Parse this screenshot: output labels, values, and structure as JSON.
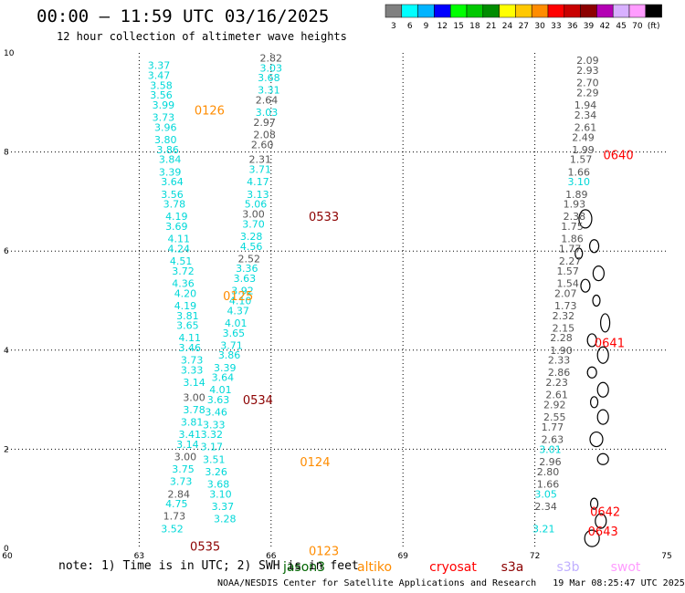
{
  "header": {
    "title": "00:00 – 11:59 UTC 03/16/2025",
    "subtitle": "12 hour collection of altimeter wave heights"
  },
  "colorbar": {
    "ticks": [
      "3",
      "6",
      "9",
      "12",
      "15",
      "18",
      "21",
      "24",
      "27",
      "30",
      "33",
      "36",
      "39",
      "42",
      "45",
      "70",
      "(ft)"
    ],
    "colors": [
      "#808080",
      "#00ffff",
      "#00b4ff",
      "#0000ff",
      "#00ff00",
      "#00c800",
      "#008c00",
      "#ffff00",
      "#ffc800",
      "#ff8c00",
      "#ff0000",
      "#c80000",
      "#8c0000",
      "#b400b4",
      "#d8b0ff",
      "#ff9cff",
      "#000000"
    ]
  },
  "axes": {
    "x_ticks": [
      "60",
      "63",
      "66",
      "69",
      "72",
      "75"
    ],
    "y_ticks": [
      "0",
      "2",
      "4",
      "6",
      "8",
      "10"
    ],
    "xlim": [
      60,
      75
    ],
    "ylim": [
      0,
      10
    ]
  },
  "map_data": {
    "colors": {
      "gray": "#555555",
      "cyan": "#00d8d8",
      "orange": "#ff8c00",
      "darkred": "#8c0000",
      "red": "#ff0000"
    },
    "tracks": [
      {
        "color": "cyan",
        "points": [
          [
            63.45,
            9.75,
            "3.37"
          ],
          [
            63.45,
            9.55,
            "3.47"
          ],
          [
            63.5,
            9.35,
            "3.58"
          ],
          [
            63.5,
            9.15,
            "3.56"
          ],
          [
            63.55,
            8.95,
            "3.99"
          ],
          [
            63.55,
            8.7,
            "3.73"
          ],
          [
            63.6,
            8.5,
            "3.96"
          ],
          [
            63.6,
            8.25,
            "3.80"
          ],
          [
            63.65,
            8.05,
            "3.86"
          ],
          [
            63.7,
            7.85,
            "3.84"
          ],
          [
            63.7,
            7.6,
            "3.39"
          ],
          [
            63.75,
            7.4,
            "3.64"
          ],
          [
            63.75,
            7.15,
            "3.56"
          ],
          [
            63.8,
            6.95,
            "3.78"
          ],
          [
            63.85,
            6.7,
            "4.19"
          ],
          [
            63.85,
            6.5,
            "3.69"
          ],
          [
            63.9,
            6.25,
            "4.11"
          ],
          [
            63.9,
            6.05,
            "4.24"
          ],
          [
            63.95,
            5.8,
            "4.51"
          ],
          [
            64.0,
            5.6,
            "3.72"
          ],
          [
            64.0,
            5.35,
            "4.36"
          ],
          [
            64.05,
            5.15,
            "4.20"
          ],
          [
            64.05,
            4.9,
            "4.19"
          ],
          [
            64.1,
            4.7,
            "3.81"
          ],
          [
            64.1,
            4.5,
            "3.65"
          ],
          [
            64.15,
            4.25,
            "4.11"
          ],
          [
            64.15,
            4.05,
            "3.46"
          ],
          [
            64.2,
            3.8,
            "3.73"
          ],
          [
            64.2,
            3.6,
            "3.33"
          ],
          [
            64.25,
            3.35,
            "3.14"
          ]
        ]
      },
      {
        "color": "gray",
        "points": [
          [
            64.25,
            3.05,
            "3.00"
          ]
        ]
      },
      {
        "color": "cyan",
        "points": [
          [
            64.25,
            2.8,
            "3.78"
          ],
          [
            64.2,
            2.55,
            "3.81"
          ],
          [
            64.15,
            2.3,
            "3.41"
          ],
          [
            64.1,
            2.1,
            "3.14"
          ]
        ]
      },
      {
        "color": "gray",
        "points": [
          [
            64.05,
            1.85,
            "3.00"
          ]
        ]
      },
      {
        "color": "cyan",
        "points": [
          [
            64.0,
            1.6,
            "3.75"
          ],
          [
            63.95,
            1.35,
            "3.73"
          ]
        ]
      },
      {
        "color": "gray",
        "points": [
          [
            63.9,
            1.1,
            "2.84"
          ]
        ]
      },
      {
        "color": "cyan",
        "points": [
          [
            63.85,
            0.9,
            "4.75"
          ]
        ]
      },
      {
        "color": "gray",
        "points": [
          [
            63.8,
            0.65,
            "1.73"
          ]
        ]
      },
      {
        "color": "cyan",
        "points": [
          [
            63.75,
            0.4,
            "3.52"
          ]
        ]
      },
      {
        "color": "gray",
        "points": [
          [
            66.0,
            9.9,
            "2.82"
          ]
        ]
      },
      {
        "color": "cyan",
        "points": [
          [
            66.0,
            9.7,
            "3.03"
          ],
          [
            65.95,
            9.5,
            "3.68"
          ],
          [
            65.95,
            9.25,
            "3.31"
          ]
        ]
      },
      {
        "color": "gray",
        "points": [
          [
            65.9,
            9.05,
            "2.64"
          ]
        ]
      },
      {
        "color": "cyan",
        "points": [
          [
            65.9,
            8.8,
            "3.03"
          ]
        ]
      },
      {
        "color": "gray",
        "points": [
          [
            65.85,
            8.6,
            "2.97"
          ],
          [
            65.85,
            8.35,
            "2.08"
          ],
          [
            65.8,
            8.15,
            "2.60"
          ],
          [
            65.75,
            7.85,
            "2.31"
          ]
        ]
      },
      {
        "color": "cyan",
        "points": [
          [
            65.75,
            7.65,
            "3.71"
          ],
          [
            65.7,
            7.4,
            "4.17"
          ],
          [
            65.7,
            7.15,
            "3.13"
          ],
          [
            65.65,
            6.95,
            "5.06"
          ]
        ]
      },
      {
        "color": "gray",
        "points": [
          [
            65.6,
            6.75,
            "3.00"
          ]
        ]
      },
      {
        "color": "cyan",
        "points": [
          [
            65.6,
            6.55,
            "3.70"
          ],
          [
            65.55,
            6.3,
            "3.28"
          ],
          [
            65.55,
            6.1,
            "4.56"
          ]
        ]
      },
      {
        "color": "gray",
        "points": [
          [
            65.5,
            5.85,
            "2.52"
          ]
        ]
      },
      {
        "color": "cyan",
        "points": [
          [
            65.45,
            5.65,
            "3.36"
          ],
          [
            65.4,
            5.45,
            "3.63"
          ],
          [
            65.35,
            5.2,
            "3.92"
          ],
          [
            65.3,
            5.0,
            "4.10"
          ],
          [
            65.25,
            4.8,
            "4.37"
          ],
          [
            65.2,
            4.55,
            "4.01"
          ],
          [
            65.15,
            4.35,
            "3.65"
          ],
          [
            65.1,
            4.1,
            "3.71"
          ],
          [
            65.05,
            3.9,
            "3.86"
          ],
          [
            64.95,
            3.65,
            "3.39"
          ],
          [
            64.9,
            3.45,
            "3.64"
          ],
          [
            64.85,
            3.2,
            "4.01"
          ],
          [
            64.8,
            3.0,
            "3.63"
          ],
          [
            64.75,
            2.75,
            "3.46"
          ],
          [
            64.7,
            2.5,
            "3.33"
          ],
          [
            64.65,
            2.3,
            "3.32"
          ],
          [
            64.65,
            2.05,
            "3.17"
          ],
          [
            64.7,
            1.8,
            "3.51"
          ],
          [
            64.75,
            1.55,
            "3.26"
          ],
          [
            64.8,
            1.3,
            "3.68"
          ],
          [
            64.85,
            1.1,
            "3.10"
          ],
          [
            64.9,
            0.85,
            "3.37"
          ],
          [
            64.95,
            0.6,
            "3.28"
          ]
        ]
      },
      {
        "color": "gray",
        "points": [
          [
            73.2,
            9.85,
            "2.09"
          ],
          [
            73.2,
            9.65,
            "2.93"
          ],
          [
            73.2,
            9.4,
            "2.70"
          ],
          [
            73.2,
            9.2,
            "2.29"
          ],
          [
            73.15,
            8.95,
            "1.94"
          ],
          [
            73.15,
            8.75,
            "2.34"
          ],
          [
            73.15,
            8.5,
            "2.61"
          ],
          [
            73.1,
            8.3,
            "2.49"
          ],
          [
            73.1,
            8.05,
            "1.99"
          ],
          [
            73.05,
            7.85,
            "1.57"
          ],
          [
            73.0,
            7.6,
            "1.66"
          ]
        ]
      },
      {
        "color": "cyan",
        "points": [
          [
            73.0,
            7.4,
            "3.10"
          ]
        ]
      },
      {
        "color": "gray",
        "points": [
          [
            72.95,
            7.15,
            "1.89"
          ],
          [
            72.9,
            6.95,
            "1.93"
          ],
          [
            72.9,
            6.7,
            "2.38"
          ],
          [
            72.85,
            6.5,
            "1.75"
          ],
          [
            72.85,
            6.25,
            "1.86"
          ],
          [
            72.8,
            6.05,
            "1.77"
          ],
          [
            72.8,
            5.8,
            "2.27"
          ],
          [
            72.75,
            5.6,
            "1.57"
          ],
          [
            72.75,
            5.35,
            "1.54"
          ],
          [
            72.7,
            5.15,
            "2.07"
          ],
          [
            72.7,
            4.9,
            "1.73"
          ],
          [
            72.65,
            4.7,
            "2.32"
          ],
          [
            72.65,
            4.45,
            "2.15"
          ],
          [
            72.6,
            4.25,
            "2.28"
          ],
          [
            72.6,
            4.0,
            "1.90"
          ],
          [
            72.55,
            3.8,
            "2.33"
          ],
          [
            72.55,
            3.55,
            "2.86"
          ],
          [
            72.5,
            3.35,
            "2.23"
          ],
          [
            72.5,
            3.1,
            "2.61"
          ],
          [
            72.45,
            2.9,
            "2.92"
          ],
          [
            72.45,
            2.65,
            "2.55"
          ],
          [
            72.4,
            2.45,
            "1.77"
          ],
          [
            72.4,
            2.2,
            "2.63"
          ]
        ]
      },
      {
        "color": "cyan",
        "points": [
          [
            72.35,
            2.0,
            "3.01"
          ]
        ]
      },
      {
        "color": "gray",
        "points": [
          [
            72.35,
            1.75,
            "2.96"
          ],
          [
            72.3,
            1.55,
            "2.80"
          ],
          [
            72.3,
            1.3,
            "1.66"
          ]
        ]
      },
      {
        "color": "cyan",
        "points": [
          [
            72.25,
            1.1,
            "3.05"
          ]
        ]
      },
      {
        "color": "gray",
        "points": [
          [
            72.25,
            0.85,
            "2.34"
          ]
        ]
      },
      {
        "color": "cyan",
        "points": [
          [
            72.2,
            0.4,
            "3.21"
          ]
        ]
      }
    ],
    "time_labels": [
      {
        "text": "0126",
        "x": 64.6,
        "y": 8.85,
        "color": "orange"
      },
      {
        "text": "0533",
        "x": 67.2,
        "y": 6.7,
        "color": "darkred"
      },
      {
        "text": "0125",
        "x": 65.25,
        "y": 5.1,
        "color": "orange"
      },
      {
        "text": "0534",
        "x": 65.7,
        "y": 3.0,
        "color": "darkred"
      },
      {
        "text": "0124",
        "x": 67.0,
        "y": 1.75,
        "color": "orange"
      },
      {
        "text": "0535",
        "x": 64.5,
        "y": 0.05,
        "color": "darkred"
      },
      {
        "text": "0123",
        "x": 67.2,
        "y": -0.05,
        "color": "orange"
      },
      {
        "text": "0640",
        "x": 73.9,
        "y": 7.95,
        "color": "red"
      },
      {
        "text": "0641",
        "x": 73.7,
        "y": 4.15,
        "color": "red"
      },
      {
        "text": "0642",
        "x": 73.6,
        "y": 0.75,
        "color": "red"
      },
      {
        "text": "0643",
        "x": 73.55,
        "y": 0.35,
        "color": "red"
      }
    ],
    "islands": [
      {
        "lon": 73.15,
        "lat": 6.65,
        "rx": 7,
        "ry": 10
      },
      {
        "lon": 73.35,
        "lat": 6.1,
        "rx": 5,
        "ry": 7
      },
      {
        "lon": 73.0,
        "lat": 5.95,
        "rx": 4,
        "ry": 6
      },
      {
        "lon": 73.45,
        "lat": 5.55,
        "rx": 6,
        "ry": 8
      },
      {
        "lon": 73.15,
        "lat": 5.3,
        "rx": 5,
        "ry": 7
      },
      {
        "lon": 73.4,
        "lat": 5.0,
        "rx": 4,
        "ry": 6
      },
      {
        "lon": 73.6,
        "lat": 4.55,
        "rx": 5,
        "ry": 10
      },
      {
        "lon": 73.3,
        "lat": 4.2,
        "rx": 5,
        "ry": 7
      },
      {
        "lon": 73.55,
        "lat": 3.9,
        "rx": 6,
        "ry": 9
      },
      {
        "lon": 73.3,
        "lat": 3.55,
        "rx": 5,
        "ry": 6
      },
      {
        "lon": 73.55,
        "lat": 3.2,
        "rx": 6,
        "ry": 8
      },
      {
        "lon": 73.35,
        "lat": 2.95,
        "rx": 4,
        "ry": 6
      },
      {
        "lon": 73.55,
        "lat": 2.65,
        "rx": 6,
        "ry": 8
      },
      {
        "lon": 73.4,
        "lat": 2.2,
        "rx": 7,
        "ry": 8
      },
      {
        "lon": 73.55,
        "lat": 1.8,
        "rx": 6,
        "ry": 6
      },
      {
        "lon": 73.35,
        "lat": 0.9,
        "rx": 4,
        "ry": 6
      },
      {
        "lon": 73.5,
        "lat": 0.55,
        "rx": 6,
        "ry": 8
      },
      {
        "lon": 73.3,
        "lat": 0.2,
        "rx": 8,
        "ry": 9
      }
    ]
  },
  "note": "note: 1) Time is in UTC; 2) SWH is in feet",
  "legend": [
    {
      "label": "jason3",
      "color": "#006400"
    },
    {
      "label": "altiko",
      "color": "#ff8c00"
    },
    {
      "label": "cryosat",
      "color": "#ff0000"
    },
    {
      "label": "s3a",
      "color": "#8c0000"
    },
    {
      "label": "s3b",
      "color": "#c0b0ff"
    },
    {
      "label": "swot",
      "color": "#ff9cff"
    }
  ],
  "footer": {
    "credit": "NOAA/NESDIS Center for Satellite Applications and Research",
    "timestamp": "19 Mar 08:25:47 UTC 2025"
  }
}
